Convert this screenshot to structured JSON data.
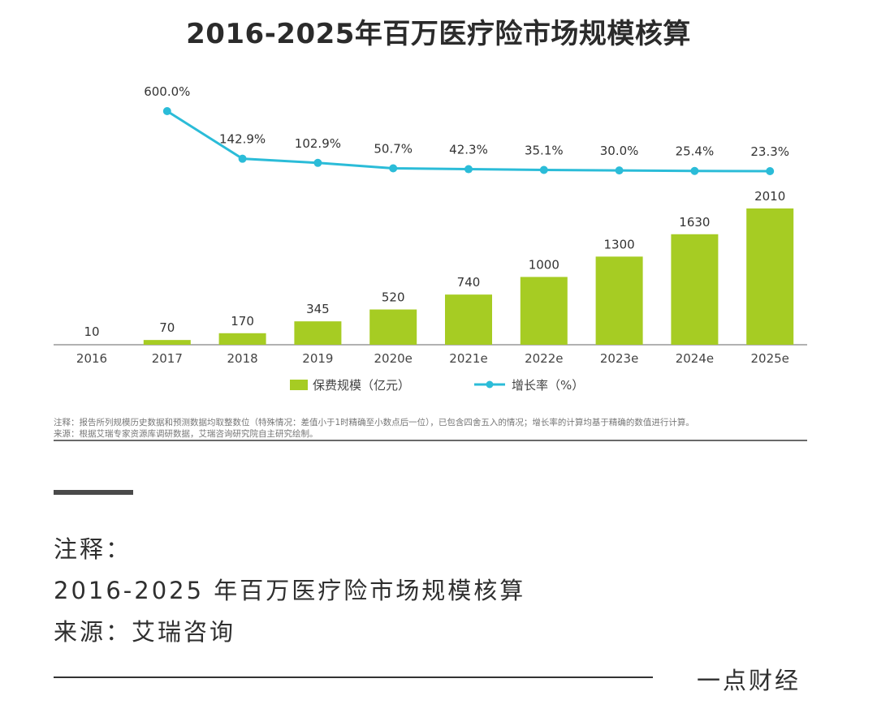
{
  "chart_data": {
    "type": "bar+line",
    "title": "2016-2025年百万医疗险市场规模核算",
    "categories": [
      "2016",
      "2017",
      "2018",
      "2019",
      "2020e",
      "2021e",
      "2022e",
      "2023e",
      "2024e",
      "2025e"
    ],
    "series": [
      {
        "name": "保费规模（亿元）",
        "type": "bar",
        "values": [
          10,
          70,
          170,
          345,
          520,
          740,
          1000,
          1300,
          1630,
          2010
        ],
        "labels": [
          "10",
          "70",
          "170",
          "345",
          "520",
          "740",
          "1000",
          "1300",
          "1630",
          "2010"
        ],
        "color": "#a6cc23"
      },
      {
        "name": "增长率（%）",
        "type": "line",
        "values": [
          null,
          600.0,
          142.9,
          102.9,
          50.7,
          42.3,
          35.1,
          30.0,
          25.4,
          23.3
        ],
        "labels": [
          null,
          "600.0%",
          "142.9%",
          "102.9%",
          "50.7%",
          "42.3%",
          "35.1%",
          "30.0%",
          "25.4%",
          "23.3%"
        ],
        "color": "#2bbcd8"
      }
    ],
    "legend": [
      "保费规模（亿元）",
      "增长率（%）"
    ],
    "legend_position": "bottom",
    "grid": false
  },
  "notes": {
    "line1": "注释：报告所列规模历史数据和预测数据均取整数位（特殊情况：差值小于1时精确至小数点后一位），已包含四舍五入的情况；增长率的计算均基于精确的数值进行计算。",
    "line2": "来源：根据艾瑞专家资源库调研数据，艾瑞咨询研究院自主研究绘制。"
  },
  "caption": {
    "label": "注释：",
    "title": "2016-2025 年百万医疗险市场规模核算",
    "source": "来源：艾瑞咨询"
  },
  "footer": {
    "brand": "一点财经"
  }
}
